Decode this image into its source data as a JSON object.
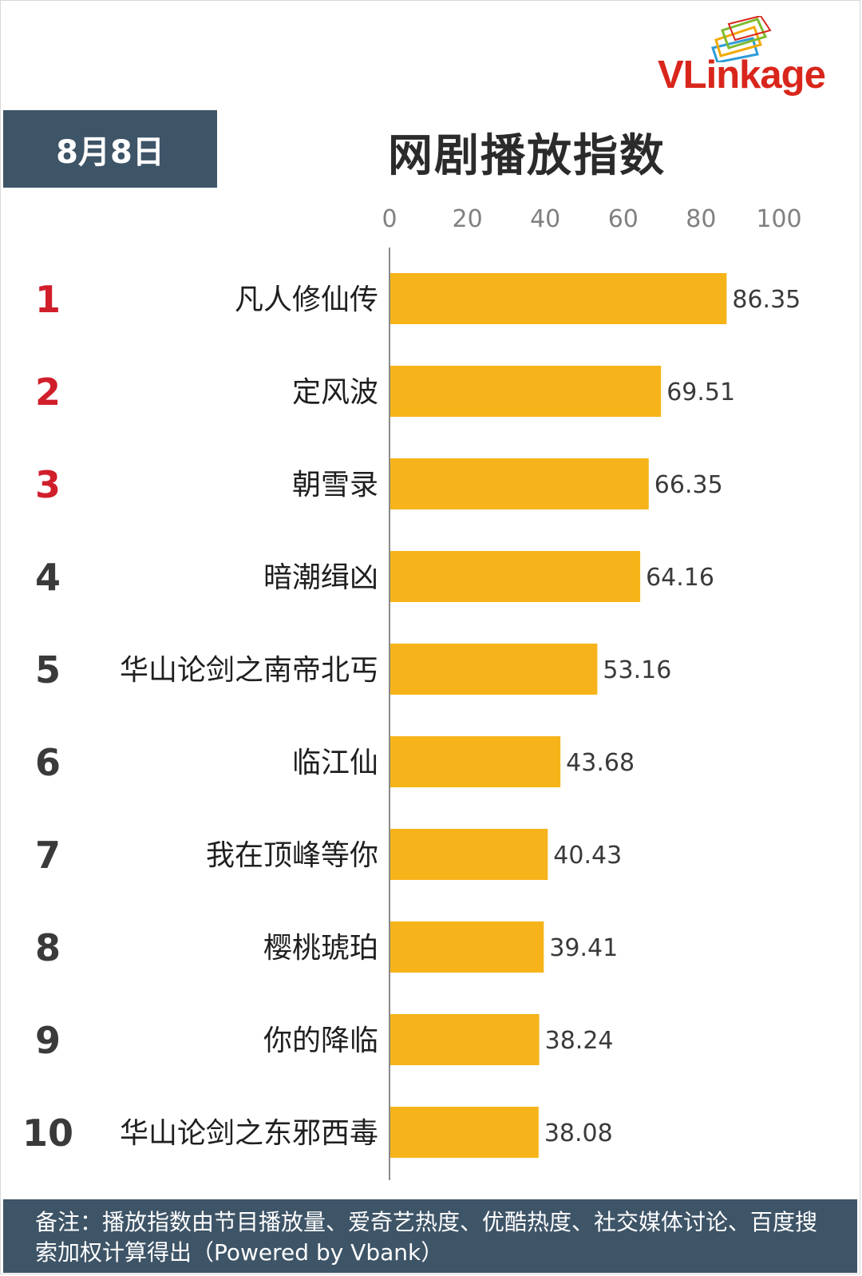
{
  "logo": {
    "brand_text": "VLinkage",
    "brand_color": "#d9261c"
  },
  "header": {
    "date": "8月8日",
    "title": "网剧播放指数"
  },
  "colors": {
    "bar": "#f6b41a",
    "rank_top3": "#d01f2b",
    "rank_other": "#3a3a3a",
    "panel": "#3e5467"
  },
  "chart_data": {
    "type": "bar",
    "orientation": "horizontal",
    "title": "网剧播放指数",
    "xlim": [
      0,
      100
    ],
    "ticks": [
      "0",
      "20",
      "40",
      "60",
      "80",
      "100"
    ],
    "tick_values": [
      0,
      20,
      40,
      60,
      80,
      100
    ],
    "grid": false,
    "ranks": [
      "1",
      "2",
      "3",
      "4",
      "5",
      "6",
      "7",
      "8",
      "9",
      "10"
    ],
    "categories": [
      "凡人修仙传",
      "定风波",
      "朝雪录",
      "暗潮缉凶",
      "华山论剑之南帝北丐",
      "临江仙",
      "我在顶峰等你",
      "樱桃琥珀",
      "你的降临",
      "华山论剑之东邪西毒"
    ],
    "values": [
      86.35,
      69.51,
      66.35,
      64.16,
      53.16,
      43.68,
      40.43,
      39.41,
      38.24,
      38.08
    ],
    "value_labels": [
      "86.35",
      "69.51",
      "66.35",
      "64.16",
      "53.16",
      "43.68",
      "40.43",
      "39.41",
      "38.24",
      "38.08"
    ]
  },
  "footer": {
    "note": "备注：播放指数由节目播放量、爱奇艺热度、优酷热度、社交媒体讨论、百度搜索加权计算得出（Powered by Vbank）"
  }
}
